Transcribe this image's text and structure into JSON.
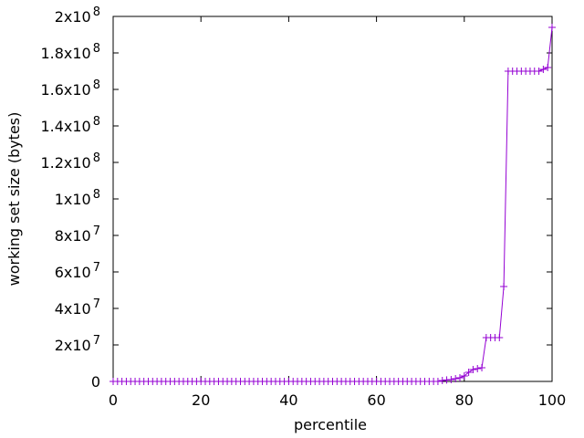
{
  "chart_data": {
    "type": "line",
    "title": "",
    "xlabel": "percentile",
    "ylabel": "working set size (bytes)",
    "xlim": [
      0,
      100
    ],
    "ylim": [
      0,
      200000000
    ],
    "grid": false,
    "legend": "none",
    "series_color": "#9400d3",
    "marker": "plus",
    "x_ticks": [
      {
        "value": 0,
        "label": "0"
      },
      {
        "value": 20,
        "label": "20"
      },
      {
        "value": 40,
        "label": "40"
      },
      {
        "value": 60,
        "label": "60"
      },
      {
        "value": 80,
        "label": "80"
      },
      {
        "value": 100,
        "label": "100"
      }
    ],
    "y_ticks": [
      {
        "value": 0,
        "mant": "0",
        "exp": ""
      },
      {
        "value": 20000000,
        "mant": "2x10",
        "exp": "7"
      },
      {
        "value": 40000000,
        "mant": "4x10",
        "exp": "7"
      },
      {
        "value": 60000000,
        "mant": "6x10",
        "exp": "7"
      },
      {
        "value": 80000000,
        "mant": "8x10",
        "exp": "7"
      },
      {
        "value": 100000000,
        "mant": "1x10",
        "exp": "8"
      },
      {
        "value": 120000000,
        "mant": "1.2x10",
        "exp": "8"
      },
      {
        "value": 140000000,
        "mant": "1.4x10",
        "exp": "8"
      },
      {
        "value": 160000000,
        "mant": "1.6x10",
        "exp": "8"
      },
      {
        "value": 180000000,
        "mant": "1.8x10",
        "exp": "8"
      },
      {
        "value": 200000000,
        "mant": "2x10",
        "exp": "8"
      }
    ],
    "series": [
      {
        "x": [
          0,
          1,
          2,
          3,
          4,
          5,
          6,
          7,
          8,
          9,
          10,
          11,
          12,
          13,
          14,
          15,
          16,
          17,
          18,
          19,
          20,
          21,
          22,
          23,
          24,
          25,
          26,
          27,
          28,
          29,
          30,
          31,
          32,
          33,
          34,
          35,
          36,
          37,
          38,
          39,
          40,
          41,
          42,
          43,
          44,
          45,
          46,
          47,
          48,
          49,
          50,
          51,
          52,
          53,
          54,
          55,
          56,
          57,
          58,
          59,
          60,
          61,
          62,
          63,
          64,
          65,
          66,
          67,
          68,
          69,
          70,
          71,
          72,
          73,
          74,
          75,
          76,
          77,
          78,
          79,
          80,
          81,
          82,
          83,
          84,
          85,
          86,
          87,
          88,
          89,
          90,
          91,
          92,
          93,
          94,
          95,
          96,
          97,
          98,
          99,
          100
        ],
        "y": [
          0,
          0,
          0,
          0,
          0,
          0,
          0,
          0,
          0,
          0,
          0,
          0,
          0,
          0,
          0,
          0,
          0,
          0,
          0,
          0,
          0,
          0,
          0,
          0,
          0,
          0,
          0,
          0,
          0,
          0,
          0,
          0,
          0,
          0,
          0,
          0,
          0,
          0,
          0,
          0,
          0,
          0,
          0,
          0,
          0,
          0,
          0,
          0,
          0,
          0,
          0,
          0,
          0,
          0,
          0,
          0,
          0,
          0,
          0,
          0,
          0,
          0,
          0,
          0,
          0,
          0,
          0,
          0,
          0,
          0,
          0,
          0,
          0,
          0,
          0,
          500000,
          800000,
          1000000,
          1500000,
          2000000,
          3000000,
          5000000,
          6500000,
          7000000,
          7500000,
          24000000,
          24000000,
          24000000,
          24000000,
          52000000,
          170000000,
          170000000,
          170000000,
          170000000,
          170000000,
          170000000,
          170000000,
          170000000,
          171000000,
          172000000,
          194000000
        ]
      }
    ]
  }
}
